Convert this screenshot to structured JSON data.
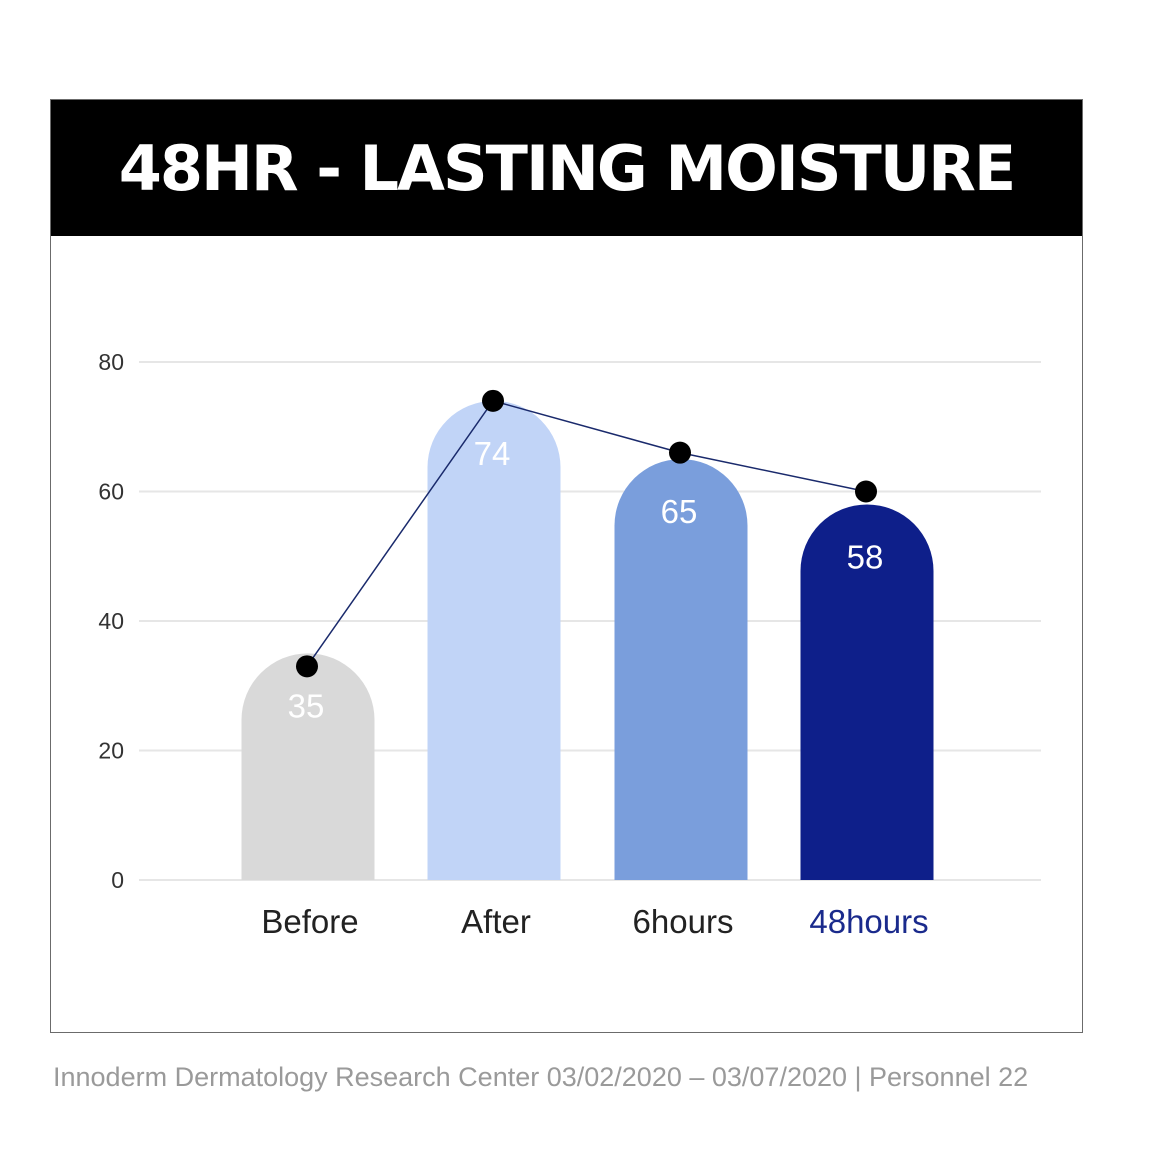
{
  "title": "48HR - LASTING MOISTURE",
  "footer": "Innoderm Dermatology Research Center 03/02/2020 – 03/07/2020 | Personnel 22",
  "chart_data": {
    "type": "bar",
    "title": "48HR - LASTING MOISTURE",
    "categories": [
      "Before",
      "After",
      "6hours",
      "48hours"
    ],
    "values": [
      35,
      74,
      65,
      58
    ],
    "data_labels": [
      "35",
      "74",
      "65",
      "58"
    ],
    "bar_colors": [
      "#d9d9d9",
      "#c1d4f7",
      "#7a9edc",
      "#0e1f8a"
    ],
    "category_label_colors": [
      "#222222",
      "#222222",
      "#222222",
      "#1a2a8c"
    ],
    "line_series": {
      "values": [
        33,
        74,
        66,
        60
      ],
      "color": "#1a2a6c",
      "marker_color": "#000000"
    },
    "yticks": [
      0,
      20,
      40,
      60,
      80
    ],
    "ylim": [
      0,
      80
    ],
    "grid": true,
    "legend": "none",
    "xlabel": "",
    "ylabel": ""
  }
}
